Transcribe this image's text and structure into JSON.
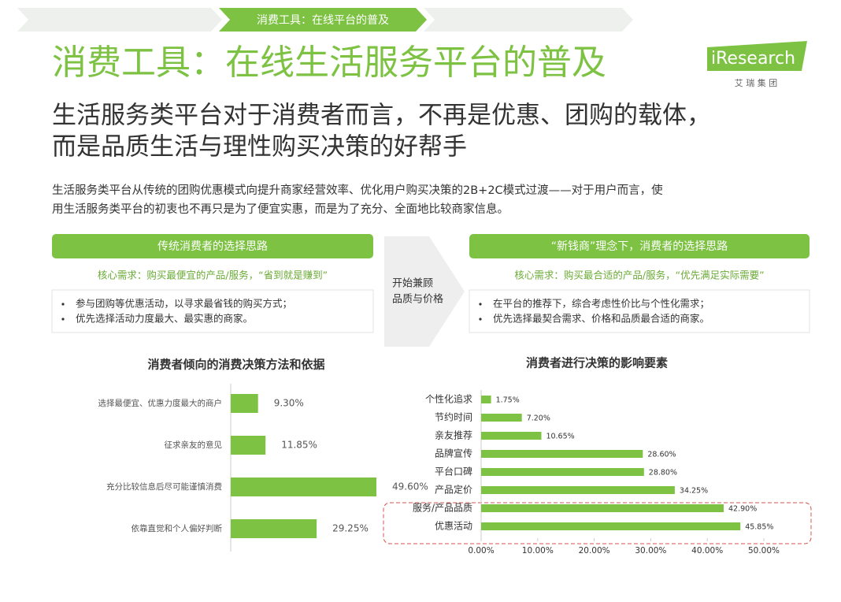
{
  "breadcrumb": "消费工具：在线平台的普及",
  "title": "消费工具：在线生活服务平台的普及",
  "logo": {
    "brand": "iResearch",
    "sub": "艾 瑞 集 团"
  },
  "subtitle": [
    "生活服务类平台对于消费者而言，不再是优惠、团购的载体，",
    "而是品质生活与理性购买决策的好帮手"
  ],
  "intro": [
    "生活服务类平台从传统的团购优惠模式向提升商家经营效率、优化用户购买决策的2B+2C模式过渡——对于用户而言，使",
    "用生活服务类平台的初衷也不再只是为了便宜实惠，而是为了充分、全面地比较商家信息。"
  ],
  "left_panel": {
    "title": "传统消费者的选择思路",
    "need": "核心需求：购买最便宜的产品/服务，“省到就是赚到”",
    "bullets": [
      "参与团购等优惠活动，以寻求最省钱的购买方式；",
      "优先选择活动力度最大、最实惠的商家。"
    ]
  },
  "arrow_text": [
    "开始兼顾",
    "品质与价格"
  ],
  "right_panel": {
    "title": "“新钱商”理念下，消费者的选择思路",
    "need": "核心需求：购买最合适的产品/服务，“优先满足实际需要”",
    "bullets": [
      "在平台的推荐下，综合考虑性价比与个性化需求；",
      "优先选择最契合需求、价格和品质最合适的商家。"
    ]
  },
  "chart_data": [
    {
      "type": "bar",
      "orientation": "horizontal",
      "title": "消费者倾向的消费决策方法和依据",
      "categories": [
        "选择最便宜、优惠力度最大的商户",
        "征求亲友的意见",
        "充分比较信息后尽可能谨慎消费",
        "依靠直觉和个人偏好判断"
      ],
      "values": [
        9.3,
        11.85,
        49.6,
        29.25
      ],
      "value_labels": [
        "9.30%",
        "11.85%",
        "49.60%",
        "29.25%"
      ],
      "color": "#7dc242"
    },
    {
      "type": "bar",
      "orientation": "horizontal",
      "title": "消费者进行决策的影响要素",
      "categories": [
        "个性化追求",
        "节约时间",
        "亲友推荐",
        "品牌宣传",
        "平台口碑",
        "产品定价",
        "服务/产品品质",
        "优惠活动"
      ],
      "values": [
        1.75,
        7.2,
        10.65,
        28.6,
        28.8,
        34.25,
        42.9,
        45.85
      ],
      "value_labels": [
        "1.75%",
        "7.20%",
        "10.65%",
        "28.60%",
        "28.80%",
        "34.25%",
        "42.90%",
        "45.85%"
      ],
      "color": "#7dc242",
      "xlim": [
        0,
        50
      ],
      "xticks": [
        {
          "value": 0,
          "label": "0.00%"
        },
        {
          "value": 10,
          "label": "10.00%"
        },
        {
          "value": 20,
          "label": "20.00%"
        },
        {
          "value": 30,
          "label": "30.00%"
        },
        {
          "value": 40,
          "label": "40.00%"
        },
        {
          "value": 50,
          "label": "50.00%"
        }
      ]
    }
  ]
}
